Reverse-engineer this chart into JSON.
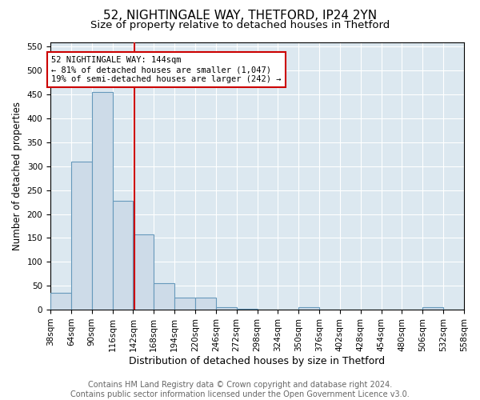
{
  "title1": "52, NIGHTINGALE WAY, THETFORD, IP24 2YN",
  "title2": "Size of property relative to detached houses in Thetford",
  "xlabel": "Distribution of detached houses by size in Thetford",
  "ylabel": "Number of detached properties",
  "bar_edges": [
    38,
    64,
    90,
    116,
    142,
    168,
    194,
    220,
    246,
    272,
    298,
    324,
    350,
    376,
    402,
    428,
    454,
    480,
    506,
    532,
    558
  ],
  "bar_heights": [
    35,
    310,
    455,
    228,
    158,
    55,
    25,
    25,
    5,
    1,
    0,
    0,
    5,
    0,
    0,
    0,
    0,
    0,
    5,
    0,
    0
  ],
  "bar_color": "#cddbe8",
  "bar_edge_color": "#6699bb",
  "vline_x": 144,
  "vline_color": "#cc0000",
  "annotation_line1": "52 NIGHTINGALE WAY: 144sqm",
  "annotation_line2": "← 81% of detached houses are smaller (1,047)",
  "annotation_line3": "19% of semi-detached houses are larger (242) →",
  "annotation_box_color": "#ffffff",
  "annotation_box_edge_color": "#cc0000",
  "ylim": [
    0,
    560
  ],
  "yticks": [
    0,
    50,
    100,
    150,
    200,
    250,
    300,
    350,
    400,
    450,
    500,
    550
  ],
  "background_color": "#dce8f0",
  "footer_text": "Contains HM Land Registry data © Crown copyright and database right 2024.\nContains public sector information licensed under the Open Government Licence v3.0.",
  "title1_fontsize": 11,
  "title2_fontsize": 9.5,
  "xlabel_fontsize": 9,
  "ylabel_fontsize": 8.5,
  "tick_fontsize": 7.5,
  "footer_fontsize": 7
}
